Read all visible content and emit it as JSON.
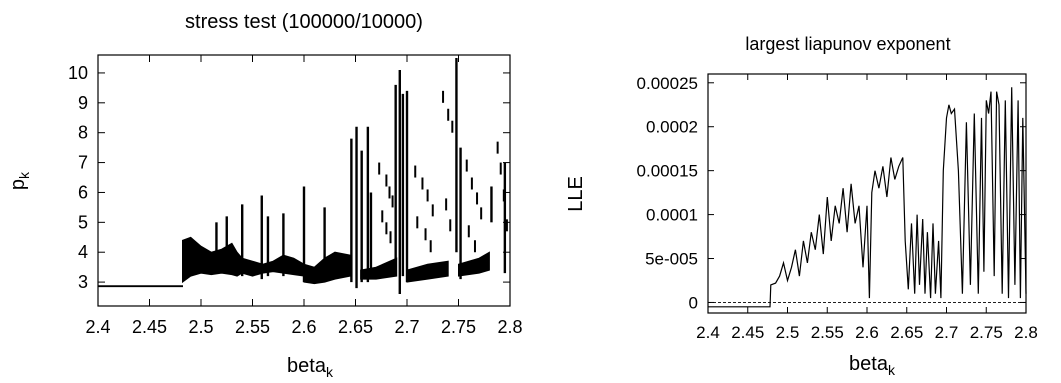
{
  "chart_data": [
    {
      "type": "scatter",
      "title": "stress test (100000/10000)",
      "xlabel": "beta",
      "xlabel_sub": "k",
      "ylabel": "p",
      "ylabel_sub": "k",
      "xlim": [
        2.4,
        2.8
      ],
      "ylim": [
        2.2,
        10.6
      ],
      "xticks": [
        "2.4",
        "2.45",
        "2.5",
        "2.55",
        "2.6",
        "2.65",
        "2.7",
        "2.75",
        "2.8"
      ],
      "yticks": [
        "3",
        "4",
        "5",
        "6",
        "7",
        "8",
        "9",
        "10"
      ],
      "grid": false,
      "bands": [
        {
          "x": [
            2.4,
            2.482
          ],
          "lo": [
            2.85,
            2.85
          ],
          "hi": [
            2.88,
            2.88
          ]
        },
        {
          "x": [
            2.482,
            2.49,
            2.5,
            2.51,
            2.52,
            2.53,
            2.535,
            2.54,
            2.55,
            2.56,
            2.57,
            2.58,
            2.59,
            2.6
          ],
          "lo": [
            3.0,
            3.2,
            3.3,
            3.25,
            3.3,
            3.25,
            3.2,
            3.3,
            3.2,
            3.3,
            3.35,
            3.3,
            3.25,
            3.2
          ],
          "hi": [
            4.4,
            4.5,
            4.2,
            4.0,
            4.1,
            4.3,
            4.0,
            3.8,
            3.7,
            3.6,
            3.7,
            3.9,
            3.8,
            3.6
          ]
        },
        {
          "x": [
            2.6,
            2.61,
            2.62,
            2.63,
            2.645
          ],
          "lo": [
            3.0,
            2.95,
            3.0,
            3.1,
            3.2
          ],
          "hi": [
            3.6,
            3.5,
            3.8,
            4.0,
            3.9
          ]
        },
        {
          "x": [
            2.655,
            2.67,
            2.69
          ],
          "lo": [
            3.1,
            3.1,
            3.2
          ],
          "hi": [
            3.4,
            3.5,
            3.8
          ]
        },
        {
          "x": [
            2.7,
            2.72,
            2.74
          ],
          "lo": [
            3.0,
            3.1,
            3.2
          ],
          "hi": [
            3.4,
            3.6,
            3.7
          ]
        },
        {
          "x": [
            2.75,
            2.77,
            2.78
          ],
          "lo": [
            3.2,
            3.3,
            3.4
          ],
          "hi": [
            3.6,
            3.8,
            4.0
          ]
        }
      ],
      "spikes": [
        {
          "x": 2.515,
          "lo": 3.3,
          "hi": 5.0
        },
        {
          "x": 2.525,
          "lo": 3.3,
          "hi": 5.2
        },
        {
          "x": 2.54,
          "lo": 3.2,
          "hi": 5.6
        },
        {
          "x": 2.559,
          "lo": 3.1,
          "hi": 5.9
        },
        {
          "x": 2.565,
          "lo": 3.2,
          "hi": 5.2
        },
        {
          "x": 2.58,
          "lo": 3.2,
          "hi": 5.3
        },
        {
          "x": 2.6,
          "lo": 3.0,
          "hi": 6.2
        },
        {
          "x": 2.62,
          "lo": 3.0,
          "hi": 5.5
        },
        {
          "x": 2.646,
          "lo": 3.0,
          "hi": 7.8
        },
        {
          "x": 2.651,
          "lo": 2.8,
          "hi": 8.2
        },
        {
          "x": 2.656,
          "lo": 3.0,
          "hi": 7.4
        },
        {
          "x": 2.662,
          "lo": 3.0,
          "hi": 8.2
        },
        {
          "x": 2.665,
          "lo": 3.2,
          "hi": 6.0
        },
        {
          "x": 2.689,
          "lo": 3.5,
          "hi": 9.6
        },
        {
          "x": 2.693,
          "lo": 2.6,
          "hi": 10.1
        },
        {
          "x": 2.696,
          "lo": 3.2,
          "hi": 9.3
        },
        {
          "x": 2.7,
          "lo": 3.0,
          "hi": 9.4
        },
        {
          "x": 2.748,
          "lo": 4.0,
          "hi": 10.5
        },
        {
          "x": 2.752,
          "lo": 3.1,
          "hi": 7.5
        },
        {
          "x": 2.782,
          "lo": 5.0,
          "hi": 6.2
        },
        {
          "x": 2.795,
          "lo": 3.3,
          "hi": 7.0
        }
      ],
      "dashes": [
        {
          "x": [
            2.673,
            2.68,
            2.683,
            2.686,
            2.676,
            2.68,
            2.684
          ],
          "y": [
            6.8,
            6.4,
            6.0,
            5.7,
            5.2,
            4.8,
            4.5
          ]
        },
        {
          "x": [
            2.708,
            2.715,
            2.72,
            2.725,
            2.71,
            2.718,
            2.723
          ],
          "y": [
            6.7,
            6.3,
            5.9,
            5.4,
            5.0,
            4.6,
            4.2
          ]
        },
        {
          "x": [
            2.735,
            2.74,
            2.744,
            2.738,
            2.742
          ],
          "y": [
            9.2,
            8.6,
            8.2,
            5.6,
            4.9
          ]
        },
        {
          "x": [
            2.758,
            2.763,
            2.768,
            2.772,
            2.76,
            2.766
          ],
          "y": [
            6.9,
            6.3,
            5.8,
            5.3,
            4.7,
            4.2
          ]
        },
        {
          "x": [
            2.788,
            2.791,
            2.794,
            2.797
          ],
          "y": [
            7.5,
            6.8,
            5.9,
            4.9
          ]
        }
      ]
    },
    {
      "type": "line",
      "title": "largest liapunov exponent",
      "xlabel": "beta",
      "xlabel_sub": "k",
      "ylabel": "LLE",
      "xlim": [
        2.4,
        2.8
      ],
      "ylim": [
        -1.2e-05,
        0.00026
      ],
      "xticks": [
        "2.4",
        "2.45",
        "2.5",
        "2.55",
        "2.6",
        "2.65",
        "2.7",
        "2.75",
        "2.8"
      ],
      "yticks": [
        "0",
        "5e-005",
        "0.0001",
        "0.00015",
        "0.0002",
        "0.00025"
      ],
      "ytick_values": [
        0,
        5e-05,
        0.0001,
        0.00015,
        0.0002,
        0.00025
      ],
      "grid": false,
      "zero_line": true,
      "x": [
        2.4,
        2.478,
        2.479,
        2.485,
        2.49,
        2.495,
        2.5,
        2.505,
        2.51,
        2.515,
        2.52,
        2.525,
        2.53,
        2.535,
        2.54,
        2.545,
        2.55,
        2.555,
        2.56,
        2.565,
        2.57,
        2.575,
        2.58,
        2.585,
        2.59,
        2.595,
        2.6,
        2.603,
        2.606,
        2.61,
        2.615,
        2.62,
        2.625,
        2.63,
        2.635,
        2.64,
        2.645,
        2.648,
        2.652,
        2.656,
        2.66,
        2.663,
        2.666,
        2.67,
        2.673,
        2.676,
        2.68,
        2.683,
        2.686,
        2.69,
        2.693,
        2.696,
        2.7,
        2.703,
        2.706,
        2.71,
        2.715,
        2.72,
        2.725,
        2.73,
        2.735,
        2.74,
        2.744,
        2.747,
        2.75,
        2.753,
        2.756,
        2.76,
        2.763,
        2.766,
        2.77,
        2.774,
        2.778,
        2.782,
        2.786,
        2.79,
        2.793,
        2.796,
        2.8
      ],
      "y": [
        -5e-06,
        -5e-06,
        2e-05,
        2.2e-05,
        3e-05,
        4.5e-05,
        2.5e-05,
        4e-05,
        6e-05,
        3e-05,
        7e-05,
        4.5e-05,
        8e-05,
        6e-05,
        0.0001,
        5.5e-05,
        0.00012,
        7e-05,
        0.00011,
        9e-05,
        0.00013,
        8e-05,
        0.000135,
        9e-05,
        0.00011,
        4e-05,
        0.00011,
        5e-06,
        0.000125,
        0.00015,
        0.00013,
        0.000155,
        0.00012,
        0.000165,
        0.00014,
        0.000155,
        0.000165,
        7e-05,
        1.5e-05,
        9e-05,
        1e-05,
        0.0001,
        2e-05,
        9.5e-05,
        1e-05,
        8e-05,
        5e-06,
        9e-05,
        1e-05,
        7e-05,
        5e-06,
        0.00015,
        0.00021,
        0.000225,
        0.000215,
        0.00022,
        0.00015,
        1e-05,
        0.000205,
        2e-05,
        0.000215,
        1e-05,
        0.00021,
        3.5e-05,
        0.00023,
        0.000215,
        0.00024,
        3e-05,
        0.00024,
        0.000225,
        1e-05,
        0.00023,
        5e-06,
        0.000245,
        2e-05,
        0.00023,
        5e-06,
        0.00021,
        1e-05
      ]
    }
  ]
}
